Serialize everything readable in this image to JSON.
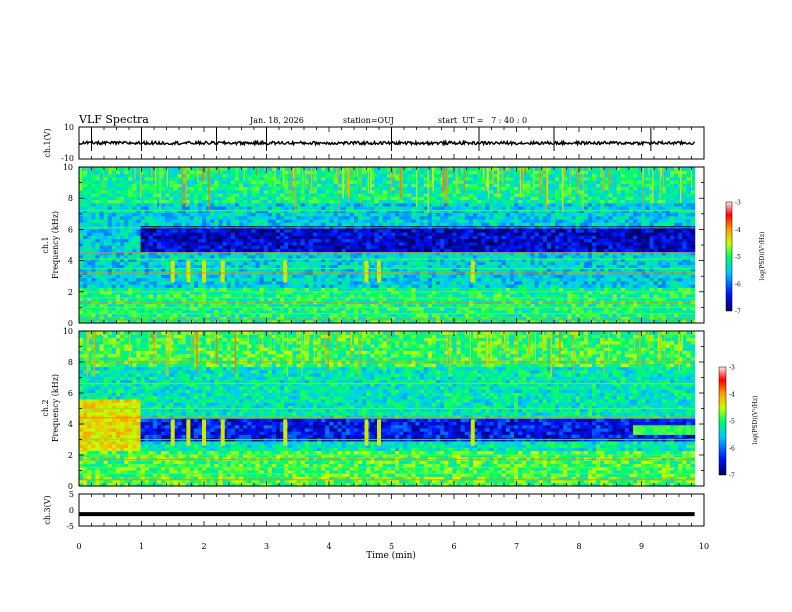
{
  "header": {
    "title": "VLF Spectra",
    "date": "Jan. 18, 2026",
    "station": "station=OUJ",
    "start_ut": "start  UT =   7 : 40 : 0"
  },
  "chart_data": [
    {
      "type": "line",
      "name": "ch1-waveform",
      "ylabel": "ch.1(V)",
      "ylim": [
        -10,
        10
      ],
      "y_ticklabels": [
        "10",
        "-10"
      ],
      "baseline": 0,
      "noise_amplitude": 1,
      "spikes_min": [
        0.2,
        1.0,
        2.2,
        3.0,
        5.0,
        6.4,
        7.6,
        9.15
      ]
    },
    {
      "type": "heatmap",
      "name": "ch1-spectrogram",
      "ylabel": "ch.1\nFrequency (kHz)",
      "ylim": [
        0,
        10
      ],
      "y_ticklabels": [
        "0",
        "2",
        "4",
        "6",
        "8",
        "10"
      ],
      "xlim_min": [
        0,
        9.85
      ],
      "colorbar": {
        "label": "log(PSD)(V²/Hz)",
        "range": [
          -7,
          -3
        ],
        "ticklabels": [
          "-7",
          "-6",
          "-5",
          "-4",
          "-3"
        ]
      },
      "features": {
        "broadband_background_level": -5.5,
        "quiet_band_khz": [
          4.5,
          6.2
        ],
        "quiet_band_start_min": 0.95,
        "whistler_bursts_min": [
          1.5,
          1.75,
          2.0,
          2.3,
          3.3,
          4.6,
          4.8,
          6.3
        ],
        "narrowband_lines_khz": [
          0.2,
          0.6,
          1.0,
          1.3,
          1.6,
          2.0,
          3.2,
          3.5,
          4.1,
          4.5,
          6.1,
          7.2
        ]
      }
    },
    {
      "type": "heatmap",
      "name": "ch2-spectrogram",
      "ylabel": "ch.2\nFrequency (kHz)",
      "ylim": [
        0,
        10
      ],
      "y_ticklabels": [
        "0",
        "2",
        "4",
        "6",
        "8",
        "10"
      ],
      "xlim_min": [
        0,
        9.85
      ],
      "colorbar": {
        "label": "log(PSD)(V²/Hz)",
        "range": [
          -7,
          -3
        ],
        "ticklabels": [
          "-7",
          "-6",
          "-5",
          "-4",
          "-3"
        ]
      },
      "features": {
        "broadband_background_level": -5.3,
        "bright_patch": {
          "t_min": [
            0,
            0.95
          ],
          "f_khz": [
            2.2,
            5.5
          ],
          "level": -4.3
        },
        "quiet_band_khz": [
          2.8,
          4.2
        ],
        "quiet_band_start_min": 0.95,
        "late_band": {
          "t_min": [
            8.8,
            9.85
          ],
          "f_khz": [
            3.2,
            3.8
          ],
          "level": -4.9
        },
        "whistler_bursts_min": [
          1.5,
          1.75,
          2.0,
          2.3,
          3.3,
          4.6,
          4.8,
          6.3
        ],
        "narrowband_lines_khz": [
          0.4,
          0.8,
          1.2,
          1.7,
          2.0,
          3.0,
          4.4,
          5.0,
          6.6,
          8.0
        ]
      }
    },
    {
      "type": "line",
      "name": "ch3-waveform",
      "ylabel": "ch.3(V)",
      "ylim": [
        -5,
        5
      ],
      "y_ticklabels": [
        "5",
        "0",
        "-5"
      ],
      "baseline": -1.3,
      "xlabel": "Time (min)",
      "xlim": [
        0,
        10
      ],
      "x_ticklabels": [
        "0",
        "1",
        "2",
        "3",
        "4",
        "5",
        "6",
        "7",
        "8",
        "9",
        "10"
      ]
    }
  ]
}
